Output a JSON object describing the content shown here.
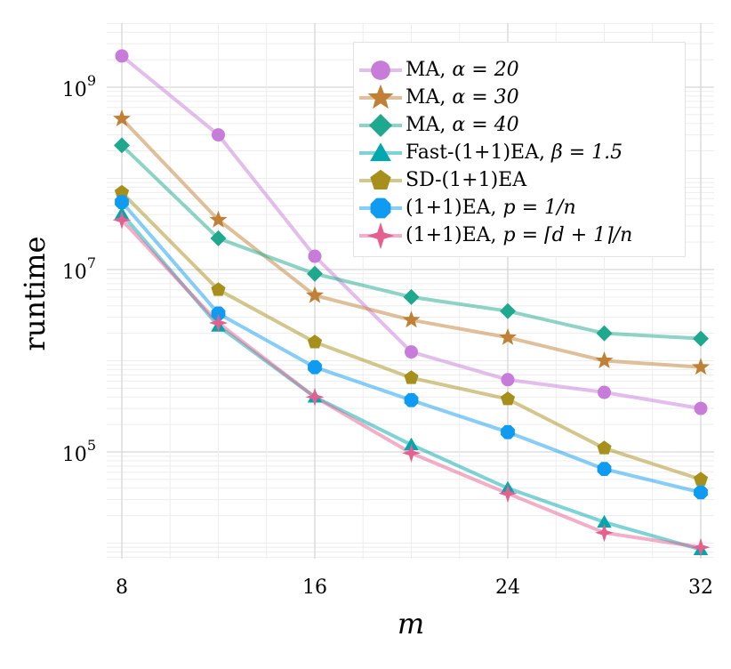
{
  "chart_data": {
    "type": "line",
    "title": "",
    "xlabel": "m",
    "ylabel": "runtime",
    "yscale": "log",
    "xlim": [
      8,
      32
    ],
    "ylim": [
      7000,
      3500000000
    ],
    "x_ticks": [
      8,
      16,
      24,
      32
    ],
    "y_ticks": [
      {
        "value": 100000,
        "label": "10^5",
        "base": "10",
        "exp": "5"
      },
      {
        "value": 10000000,
        "label": "10^7",
        "base": "10",
        "exp": "7"
      },
      {
        "value": 1000000000,
        "label": "10^9",
        "base": "10",
        "exp": "9"
      }
    ],
    "grid": true,
    "legend_position": "top-right",
    "x": [
      8,
      12,
      16,
      20,
      24,
      28,
      32
    ],
    "series": [
      {
        "name": "MA, α = 20",
        "color": "#c77cd9",
        "marker": "circle",
        "values": [
          2200000000,
          300000000,
          14000000,
          1250000,
          620000,
          450000,
          300000
        ]
      },
      {
        "name": "MA, α = 30",
        "color": "#c08136",
        "marker": "star5",
        "values": [
          450000000,
          35000000,
          5200000,
          2800000,
          1800000,
          1000000,
          850000
        ]
      },
      {
        "name": "MA, α = 40",
        "color": "#1ea98e",
        "marker": "diamond",
        "values": [
          230000000,
          22000000,
          9000000,
          5000000,
          3500000,
          2000000,
          1750000
        ]
      },
      {
        "name": "Fast-(1+1)EA, β = 1.5",
        "color": "#00a8ae",
        "marker": "triangle",
        "values": [
          41000000,
          2400000,
          400000,
          120000,
          40000,
          17000,
          8500
        ]
      },
      {
        "name": "SD-(1+1)EA",
        "color": "#a78f1c",
        "marker": "pentagon",
        "values": [
          70000000,
          6000000,
          1600000,
          650000,
          380000,
          110000,
          50000
        ]
      },
      {
        "name": "(1+1)EA, p = 1/n",
        "color": "#0e9bf1",
        "marker": "octagon",
        "values": [
          55000000,
          3300000,
          850000,
          370000,
          165000,
          65000,
          36000
        ]
      },
      {
        "name": "(1+1)EA, p = ⌈d + 1⌉/n",
        "color": "#e5608f",
        "marker": "star4",
        "values": [
          35000000,
          2600000,
          400000,
          97000,
          35000,
          13000,
          9000
        ]
      }
    ],
    "legend": [
      {
        "pre": "MA, ",
        "math": "α = 20"
      },
      {
        "pre": "MA, ",
        "math": "α = 30"
      },
      {
        "pre": "MA, ",
        "math": "α = 40"
      },
      {
        "pre": "Fast-(1+1)EA, ",
        "math": "β = 1.5"
      },
      {
        "pre": "SD-(1+1)EA",
        "math": ""
      },
      {
        "pre": "(1+1)EA, ",
        "math": "p = 1/n"
      },
      {
        "pre": "(1+1)EA, ",
        "math": "p = ⌈d + 1⌉/n"
      }
    ]
  }
}
